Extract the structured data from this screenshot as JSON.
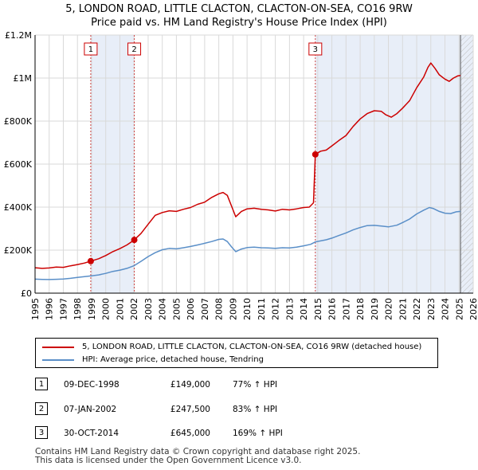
{
  "chart_data": {
    "type": "line",
    "title_line1": "5, LONDON ROAD, LITTLE CLACTON, CLACTON-ON-SEA, CO16 9RW",
    "title_line2": "Price paid vs. HM Land Registry's House Price Index (HPI)",
    "xlim": [
      1995,
      2026
    ],
    "ylim": [
      0,
      1200000
    ],
    "x_ticks": [
      "1995",
      "1996",
      "1997",
      "1998",
      "1999",
      "2000",
      "2001",
      "2002",
      "2003",
      "2004",
      "2005",
      "2006",
      "2007",
      "2008",
      "2009",
      "2010",
      "2011",
      "2012",
      "2013",
      "2014",
      "2015",
      "2016",
      "2017",
      "2018",
      "2019",
      "2020",
      "2021",
      "2022",
      "2023",
      "2024",
      "2025",
      "2026"
    ],
    "y_ticks": [
      {
        "value": 0,
        "label": "£0"
      },
      {
        "value": 200000,
        "label": "£200K"
      },
      {
        "value": 400000,
        "label": "£400K"
      },
      {
        "value": 600000,
        "label": "£600K"
      },
      {
        "value": 800000,
        "label": "£800K"
      },
      {
        "value": 1000000,
        "label": "£1M"
      },
      {
        "value": 1200000,
        "label": "£1.2M"
      }
    ],
    "forecast_start": 2025.1,
    "series": [
      {
        "name": "5, LONDON ROAD, LITTLE CLACTON, CLACTON-ON-SEA, CO16 9RW (detached house)",
        "color": "#cc0000",
        "points": [
          [
            1995.0,
            118000
          ],
          [
            1995.5,
            115000
          ],
          [
            1996.0,
            117000
          ],
          [
            1996.5,
            121000
          ],
          [
            1997.0,
            120000
          ],
          [
            1997.5,
            127000
          ],
          [
            1998.0,
            133000
          ],
          [
            1998.5,
            140000
          ],
          [
            1998.94,
            149000
          ],
          [
            1999.5,
            160000
          ],
          [
            2000.0,
            175000
          ],
          [
            2000.5,
            193000
          ],
          [
            2001.0,
            207000
          ],
          [
            2001.5,
            224000
          ],
          [
            2002.02,
            247500
          ],
          [
            2002.5,
            278000
          ],
          [
            2003.0,
            320000
          ],
          [
            2003.5,
            362000
          ],
          [
            2004.0,
            375000
          ],
          [
            2004.5,
            383000
          ],
          [
            2005.0,
            380000
          ],
          [
            2005.5,
            390000
          ],
          [
            2006.0,
            398000
          ],
          [
            2006.5,
            413000
          ],
          [
            2007.0,
            423000
          ],
          [
            2007.5,
            445000
          ],
          [
            2008.0,
            462000
          ],
          [
            2008.3,
            468000
          ],
          [
            2008.6,
            455000
          ],
          [
            2008.9,
            405000
          ],
          [
            2009.2,
            355000
          ],
          [
            2009.6,
            380000
          ],
          [
            2010.0,
            392000
          ],
          [
            2010.5,
            395000
          ],
          [
            2011.0,
            390000
          ],
          [
            2011.5,
            387000
          ],
          [
            2012.0,
            382000
          ],
          [
            2012.5,
            390000
          ],
          [
            2013.0,
            387000
          ],
          [
            2013.5,
            392000
          ],
          [
            2014.0,
            398000
          ],
          [
            2014.4,
            400000
          ],
          [
            2014.7,
            420000
          ],
          [
            2014.83,
            645000
          ],
          [
            2015.2,
            660000
          ],
          [
            2015.6,
            665000
          ],
          [
            2016.0,
            685000
          ],
          [
            2016.5,
            710000
          ],
          [
            2017.0,
            733000
          ],
          [
            2017.5,
            775000
          ],
          [
            2018.0,
            810000
          ],
          [
            2018.5,
            835000
          ],
          [
            2019.0,
            848000
          ],
          [
            2019.5,
            845000
          ],
          [
            2019.8,
            830000
          ],
          [
            2020.2,
            818000
          ],
          [
            2020.6,
            835000
          ],
          [
            2021.0,
            860000
          ],
          [
            2021.5,
            895000
          ],
          [
            2022.0,
            955000
          ],
          [
            2022.5,
            1005000
          ],
          [
            2022.8,
            1050000
          ],
          [
            2023.0,
            1070000
          ],
          [
            2023.3,
            1045000
          ],
          [
            2023.6,
            1015000
          ],
          [
            2024.0,
            995000
          ],
          [
            2024.3,
            985000
          ],
          [
            2024.6,
            1000000
          ],
          [
            2024.9,
            1010000
          ],
          [
            2025.1,
            1012000
          ]
        ]
      },
      {
        "name": "HPI: Average price, detached house, Tendring",
        "color": "#5a8fc8",
        "points": [
          [
            1995.0,
            65000
          ],
          [
            1995.5,
            64000
          ],
          [
            1996.0,
            63500
          ],
          [
            1996.5,
            64500
          ],
          [
            1997.0,
            66000
          ],
          [
            1997.5,
            69000
          ],
          [
            1998.0,
            73000
          ],
          [
            1998.5,
            77000
          ],
          [
            1998.94,
            80000
          ],
          [
            1999.5,
            85000
          ],
          [
            2000.0,
            92000
          ],
          [
            2000.5,
            101000
          ],
          [
            2001.0,
            107000
          ],
          [
            2001.5,
            115000
          ],
          [
            2002.02,
            128000
          ],
          [
            2002.5,
            148000
          ],
          [
            2003.0,
            170000
          ],
          [
            2003.5,
            188000
          ],
          [
            2004.0,
            202000
          ],
          [
            2004.5,
            208000
          ],
          [
            2005.0,
            206000
          ],
          [
            2005.5,
            211000
          ],
          [
            2006.0,
            217000
          ],
          [
            2006.5,
            224000
          ],
          [
            2007.0,
            232000
          ],
          [
            2007.5,
            240000
          ],
          [
            2008.0,
            250000
          ],
          [
            2008.3,
            252000
          ],
          [
            2008.6,
            240000
          ],
          [
            2008.9,
            215000
          ],
          [
            2009.2,
            193000
          ],
          [
            2009.6,
            205000
          ],
          [
            2010.0,
            212000
          ],
          [
            2010.5,
            214000
          ],
          [
            2011.0,
            211000
          ],
          [
            2011.5,
            210000
          ],
          [
            2012.0,
            208000
          ],
          [
            2012.5,
            211000
          ],
          [
            2013.0,
            210000
          ],
          [
            2013.5,
            214000
          ],
          [
            2014.0,
            220000
          ],
          [
            2014.5,
            227000
          ],
          [
            2014.83,
            238000
          ],
          [
            2015.2,
            243000
          ],
          [
            2015.6,
            248000
          ],
          [
            2016.0,
            256000
          ],
          [
            2016.5,
            268000
          ],
          [
            2017.0,
            280000
          ],
          [
            2017.5,
            294000
          ],
          [
            2018.0,
            305000
          ],
          [
            2018.5,
            314000
          ],
          [
            2019.0,
            315000
          ],
          [
            2019.5,
            312000
          ],
          [
            2020.0,
            308000
          ],
          [
            2020.6,
            316000
          ],
          [
            2021.0,
            328000
          ],
          [
            2021.5,
            345000
          ],
          [
            2022.0,
            368000
          ],
          [
            2022.5,
            386000
          ],
          [
            2022.9,
            398000
          ],
          [
            2023.2,
            393000
          ],
          [
            2023.6,
            380000
          ],
          [
            2024.0,
            372000
          ],
          [
            2024.4,
            370000
          ],
          [
            2024.8,
            378000
          ],
          [
            2025.1,
            380000
          ]
        ]
      }
    ],
    "sales": [
      {
        "num": "1",
        "x": 1998.94,
        "price": 149000
      },
      {
        "num": "2",
        "x": 2002.02,
        "price": 247500
      },
      {
        "num": "3",
        "x": 2014.83,
        "price": 645000
      }
    ]
  },
  "legend": {
    "property_label": "5, LONDON ROAD, LITTLE CLACTON, CLACTON-ON-SEA, CO16 9RW (detached house)",
    "hpi_label": "HPI: Average price, detached house, Tendring"
  },
  "table": [
    {
      "num": "1",
      "date": "09-DEC-1998",
      "price": "£149,000",
      "hpi": "77% ↑ HPI"
    },
    {
      "num": "2",
      "date": "07-JAN-2002",
      "price": "£247,500",
      "hpi": "83% ↑ HPI"
    },
    {
      "num": "3",
      "date": "30-OCT-2014",
      "price": "£645,000",
      "hpi": "169% ↑ HPI"
    }
  ],
  "footer": {
    "line1": "Contains HM Land Registry data © Crown copyright and database right 2025.",
    "line2": "This data is licensed under the Open Government Licence v3.0."
  }
}
